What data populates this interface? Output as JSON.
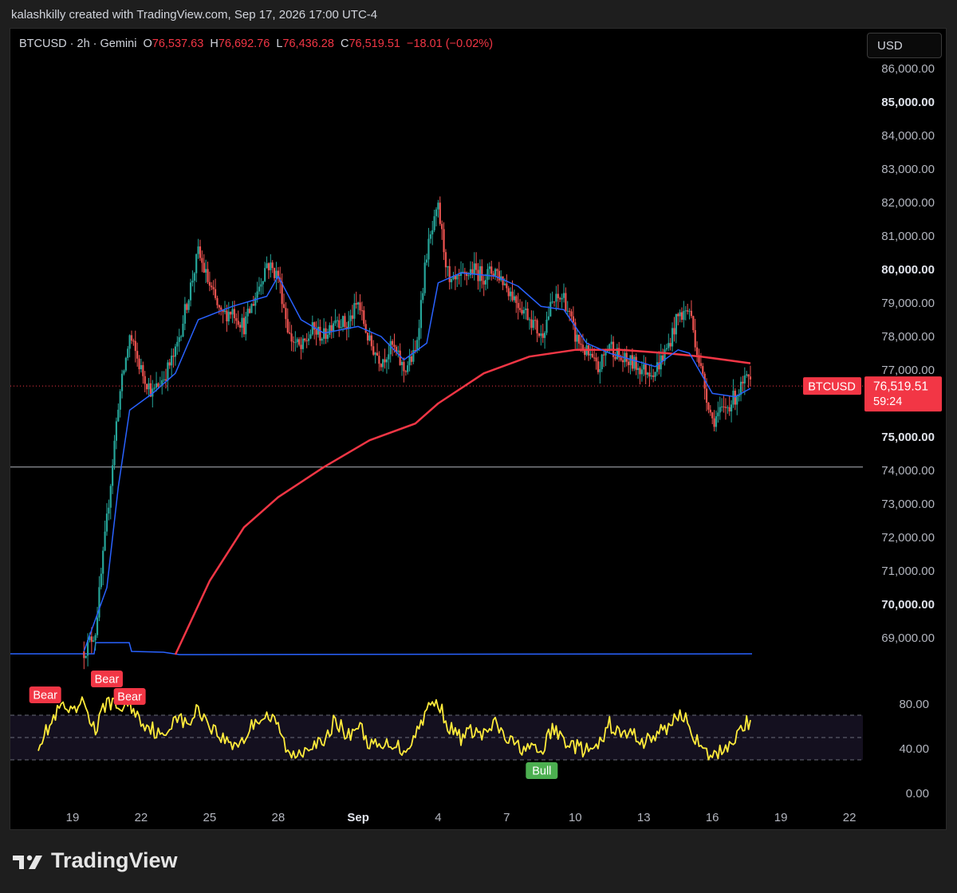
{
  "header": {
    "attribution": "kalashkilly created with TradingView.com, Sep 17, 2026 17:00 UTC-4"
  },
  "legend": {
    "symbol": "BTCUSD · 2h · Gemini",
    "o_label": "O",
    "o": "76,537.63",
    "h_label": "H",
    "h": "76,692.76",
    "l_label": "L",
    "l": "76,436.28",
    "c_label": "C",
    "c": "76,519.51",
    "change": "−18.01 (−0.02%)"
  },
  "currency_button": "USD",
  "price_tag": {
    "symbol": "BTCUSD",
    "price": "76,519.51",
    "countdown": "59:24"
  },
  "brand": "TradingView",
  "colors": {
    "up": "#26a69a",
    "down": "#ef5350",
    "ema_fast": "#2962ff",
    "ema_slow": "#f23645",
    "rsi": "#ffeb3b",
    "last_price": "#f23645",
    "bull": "#4caf50",
    "bear": "#f23645"
  },
  "chart_data": [
    {
      "type": "candlestick",
      "title": "BTCUSD · 2h · Gemini",
      "price_axis": {
        "ticks": [
          86000,
          85000,
          84000,
          83000,
          82000,
          81000,
          80000,
          79000,
          78000,
          77000,
          75000,
          74000,
          73000,
          72000,
          71000,
          70000,
          69000
        ],
        "labels": [
          "86,000.00",
          "85,000.00",
          "84,000.00",
          "83,000.00",
          "82,000.00",
          "81,000.00",
          "80,000.00",
          "79,000.00",
          "78,000.00",
          "77,000.00",
          "75,000.00",
          "74,000.00",
          "73,000.00",
          "72,000.00",
          "71,000.00",
          "70,000.00",
          "69,000.00"
        ],
        "bold": [
          "85,000.00",
          "80,000.00",
          "75,000.00",
          "70,000.00"
        ],
        "range": [
          68500,
          86300
        ]
      },
      "time_axis": {
        "labels": [
          "19",
          "22",
          "25",
          "28",
          "Sep",
          "4",
          "7",
          "10",
          "13",
          "16",
          "19",
          "22"
        ],
        "bold": [
          "Sep"
        ]
      },
      "close_path": [
        [
          "Aug 19 12:00",
          68600
        ],
        [
          "Aug 20 00:00",
          69200
        ],
        [
          "Aug 20 12:00",
          72500
        ],
        [
          "Aug 21 00:00",
          76000
        ],
        [
          "Aug 21 12:00",
          78000
        ],
        [
          "Aug 22 00:00",
          77000
        ],
        [
          "Aug 22 12:00",
          76300
        ],
        [
          "Aug 23 00:00",
          76800
        ],
        [
          "Aug 23 12:00",
          77500
        ],
        [
          "Aug 24 00:00",
          79000
        ],
        [
          "Aug 24 12:00",
          80500
        ],
        [
          "Aug 25 00:00",
          79500
        ],
        [
          "Aug 25 12:00",
          78600
        ],
        [
          "Aug 26 00:00",
          78800
        ],
        [
          "Aug 26 12:00",
          78300
        ],
        [
          "Aug 27 00:00",
          79200
        ],
        [
          "Aug 27 12:00",
          80200
        ],
        [
          "Aug 28 00:00",
          79800
        ],
        [
          "Aug 28 12:00",
          78000
        ],
        [
          "Aug 29 00:00",
          77600
        ],
        [
          "Aug 29 12:00",
          78200
        ],
        [
          "Aug 30 00:00",
          78000
        ],
        [
          "Aug 30 12:00",
          78600
        ],
        [
          "Aug 31 00:00",
          78300
        ],
        [
          "Aug 31 12:00",
          79000
        ],
        [
          "Sep 1 00:00",
          77800
        ],
        [
          "Sep 1 12:00",
          77300
        ],
        [
          "Sep 2 00:00",
          77700
        ],
        [
          "Sep 2 12:00",
          77000
        ],
        [
          "Sep 3 00:00",
          77500
        ],
        [
          "Sep 3 12:00",
          80500
        ],
        [
          "Sep 4 00:00",
          81800
        ],
        [
          "Sep 4 12:00",
          79500
        ],
        [
          "Sep 5 00:00",
          79700
        ],
        [
          "Sep 5 12:00",
          80000
        ],
        [
          "Sep 6 00:00",
          79800
        ],
        [
          "Sep 6 12:00",
          80000
        ],
        [
          "Sep 7 00:00",
          79500
        ],
        [
          "Sep 7 12:00",
          79000
        ],
        [
          "Sep 8 00:00",
          78600
        ],
        [
          "Sep 8 12:00",
          78000
        ],
        [
          "Sep 9 00:00",
          79000
        ],
        [
          "Sep 9 12:00",
          79200
        ],
        [
          "Sep 10 00:00",
          78000
        ],
        [
          "Sep 10 12:00",
          77500
        ],
        [
          "Sep 11 00:00",
          77000
        ],
        [
          "Sep 11 12:00",
          77800
        ],
        [
          "Sep 12 00:00",
          77300
        ],
        [
          "Sep 12 12:00",
          77200
        ],
        [
          "Sep 13 00:00",
          77000
        ],
        [
          "Sep 13 12:00",
          77000
        ],
        [
          "Sep 14 00:00",
          77600
        ],
        [
          "Sep 14 12:00",
          78600
        ],
        [
          "Sep 15 00:00",
          78800
        ],
        [
          "Sep 15 12:00",
          77000
        ],
        [
          "Sep 16 00:00",
          75500
        ],
        [
          "Sep 16 12:00",
          75800
        ],
        [
          "Sep 17 00:00",
          76200
        ],
        [
          "Sep 17 12:00",
          76700
        ],
        [
          "Sep 17 16:00",
          76520
        ]
      ],
      "ema_fast": [
        [
          "Aug 19 12:00",
          68600
        ],
        [
          "Aug 20 12:00",
          70500
        ],
        [
          "Aug 21 00:00",
          73500
        ],
        [
          "Aug 21 12:00",
          75800
        ],
        [
          "Aug 22 12:00",
          76300
        ],
        [
          "Aug 23 12:00",
          76900
        ],
        [
          "Aug 24 12:00",
          78500
        ],
        [
          "Aug 26 00:00",
          78900
        ],
        [
          "Aug 27 12:00",
          79200
        ],
        [
          "Aug 28 00:00",
          79800
        ],
        [
          "Aug 29 00:00",
          78500
        ],
        [
          "Aug 30 00:00",
          78100
        ],
        [
          "Aug 31 12:00",
          78300
        ],
        [
          "Sep 1 12:00",
          78000
        ],
        [
          "Sep 2 12:00",
          77300
        ],
        [
          "Sep 3 12:00",
          77800
        ],
        [
          "Sep 4 00:00",
          79600
        ],
        [
          "Sep 5 00:00",
          79900
        ],
        [
          "Sep 6 12:00",
          79800
        ],
        [
          "Sep 7 12:00",
          79500
        ],
        [
          "Sep 8 12:00",
          78900
        ],
        [
          "Sep 9 12:00",
          78800
        ],
        [
          "Sep 10 12:00",
          77800
        ],
        [
          "Sep 11 12:00",
          77500
        ],
        [
          "Sep 12 12:00",
          77300
        ],
        [
          "Sep 13 12:00",
          77100
        ],
        [
          "Sep 14 12:00",
          77600
        ],
        [
          "Sep 15 00:00",
          77500
        ],
        [
          "Sep 16 00:00",
          76300
        ],
        [
          "Sep 17 00:00",
          76200
        ],
        [
          "Sep 17 16:00",
          76450
        ]
      ],
      "ema_slow": [
        [
          "Aug 23 12:00",
          68500
        ],
        [
          "Aug 25 00:00",
          70700
        ],
        [
          "Aug 26 12:00",
          72300
        ],
        [
          "Aug 28 00:00",
          73200
        ],
        [
          "Aug 30 00:00",
          74100
        ],
        [
          "Sep 1 00:00",
          74900
        ],
        [
          "Sep 3 00:00",
          75400
        ],
        [
          "Sep 4 00:00",
          76000
        ],
        [
          "Sep 6 00:00",
          76900
        ],
        [
          "Sep 8 00:00",
          77400
        ],
        [
          "Sep 10 00:00",
          77600
        ],
        [
          "Sep 12 00:00",
          77600
        ],
        [
          "Sep 14 00:00",
          77500
        ],
        [
          "Sep 15 12:00",
          77400
        ],
        [
          "Sep 17 16:00",
          77200
        ]
      ],
      "horizontal_line": 74100,
      "last_price": 76519.51
    },
    {
      "type": "line",
      "title": "RSI",
      "y_axis": {
        "ticks": [
          80,
          40,
          0
        ],
        "labels": [
          "80.00",
          "40.00",
          "0.00"
        ],
        "range": [
          0,
          100
        ]
      },
      "bands": {
        "upper": 70,
        "middle": 50,
        "lower": 30
      },
      "values": [
        [
          "Aug 17 12:00",
          45
        ],
        [
          "Aug 18 00:00",
          60
        ],
        [
          "Aug 18 12:00",
          78
        ],
        [
          "Aug 19 00:00",
          70
        ],
        [
          "Aug 19 12:00",
          82
        ],
        [
          "Aug 20 00:00",
          55
        ],
        [
          "Aug 20 12:00",
          84
        ],
        [
          "Aug 21 00:00",
          76
        ],
        [
          "Aug 21 12:00",
          80
        ],
        [
          "Aug 22 00:00",
          65
        ],
        [
          "Aug 22 12:00",
          58
        ],
        [
          "Aug 23 00:00",
          48
        ],
        [
          "Aug 23 12:00",
          72
        ],
        [
          "Aug 24 00:00",
          60
        ],
        [
          "Aug 24 12:00",
          76
        ],
        [
          "Aug 25 00:00",
          62
        ],
        [
          "Aug 25 12:00",
          50
        ],
        [
          "Aug 26 00:00",
          44
        ],
        [
          "Aug 26 12:00",
          48
        ],
        [
          "Aug 27 00:00",
          66
        ],
        [
          "Aug 27 12:00",
          70
        ],
        [
          "Aug 28 00:00",
          60
        ],
        [
          "Aug 28 12:00",
          32
        ],
        [
          "Aug 29 00:00",
          38
        ],
        [
          "Aug 29 12:00",
          46
        ],
        [
          "Aug 30 00:00",
          42
        ],
        [
          "Aug 30 12:00",
          68
        ],
        [
          "Aug 31 00:00",
          50
        ],
        [
          "Aug 31 12:00",
          62
        ],
        [
          "Sep 1 00:00",
          44
        ],
        [
          "Sep 1 12:00",
          40
        ],
        [
          "Sep 2 00:00",
          46
        ],
        [
          "Sep 2 12:00",
          38
        ],
        [
          "Sep 3 00:00",
          52
        ],
        [
          "Sep 3 12:00",
          76
        ],
        [
          "Sep 4 00:00",
          82
        ],
        [
          "Sep 4 12:00",
          58
        ],
        [
          "Sep 5 00:00",
          50
        ],
        [
          "Sep 5 12:00",
          56
        ],
        [
          "Sep 6 00:00",
          52
        ],
        [
          "Sep 6 12:00",
          62
        ],
        [
          "Sep 7 00:00",
          48
        ],
        [
          "Sep 7 12:00",
          42
        ],
        [
          "Sep 8 00:00",
          40
        ],
        [
          "Sep 8 12:00",
          36
        ],
        [
          "Sep 9 00:00",
          58
        ],
        [
          "Sep 9 12:00",
          48
        ],
        [
          "Sep 10 00:00",
          42
        ],
        [
          "Sep 10 12:00",
          38
        ],
        [
          "Sep 11 00:00",
          40
        ],
        [
          "Sep 11 12:00",
          62
        ],
        [
          "Sep 12 00:00",
          52
        ],
        [
          "Sep 12 12:00",
          54
        ],
        [
          "Sep 13 00:00",
          46
        ],
        [
          "Sep 13 12:00",
          52
        ],
        [
          "Sep 14 00:00",
          58
        ],
        [
          "Sep 14 12:00",
          72
        ],
        [
          "Sep 15 00:00",
          62
        ],
        [
          "Sep 15 12:00",
          38
        ],
        [
          "Sep 16 00:00",
          32
        ],
        [
          "Sep 16 12:00",
          40
        ],
        [
          "Sep 17 00:00",
          50
        ],
        [
          "Sep 17 12:00",
          64
        ],
        [
          "Sep 17 16:00",
          60
        ]
      ],
      "signals": [
        {
          "label": "Bear",
          "at": "Aug 18 12:00"
        },
        {
          "label": "Bear",
          "at": "Aug 20 12:00"
        },
        {
          "label": "Bear",
          "at": "Aug 21 12:00"
        },
        {
          "label": "Bull",
          "at": "Sep 8 12:00"
        }
      ]
    }
  ]
}
